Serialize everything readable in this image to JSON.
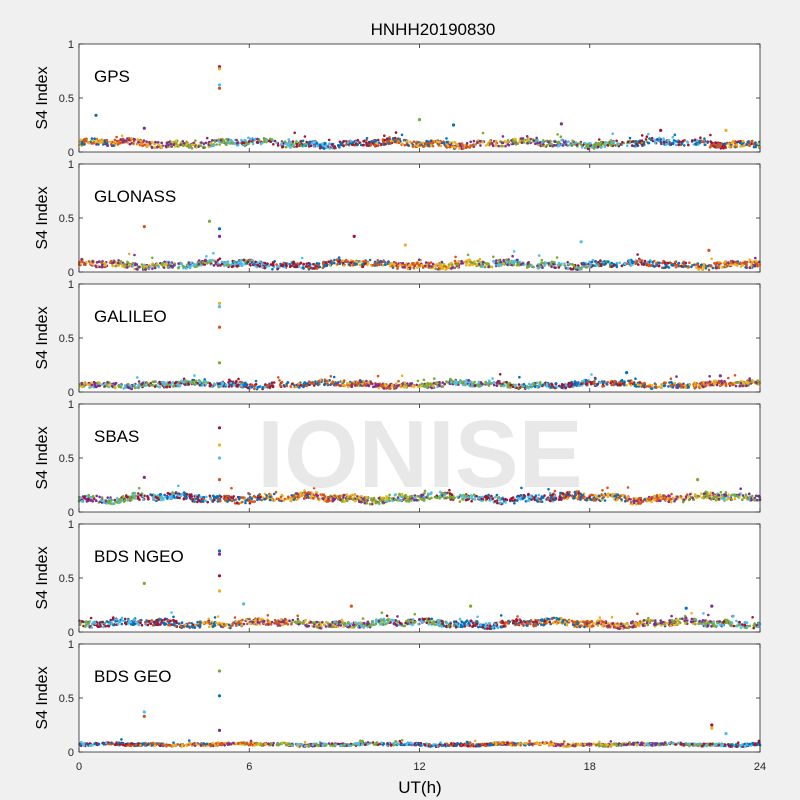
{
  "figure": {
    "title": "HNHH20190830",
    "xlabel": "UT(h)",
    "watermark": "IONISE"
  },
  "colors": {
    "series": [
      "#0072BD",
      "#D95319",
      "#EDB120",
      "#7E2F8E",
      "#77AC30",
      "#4DBEEE",
      "#A2142F"
    ],
    "axes_background": "#ffffff",
    "figure_background": "#f0f0f0",
    "watermark": "#e4e4e4"
  },
  "chart_data": [
    {
      "type": "scatter",
      "label": "GPS",
      "ylabel": "S4 Index",
      "xlim": [
        0,
        24
      ],
      "ylim": [
        0,
        1
      ],
      "xticks": [
        0,
        6,
        12,
        18,
        24
      ],
      "yticks": [
        0,
        0.5,
        1
      ],
      "ytick_labels": [
        "0",
        "0.5",
        "1"
      ],
      "show_xtick_labels": false,
      "baseline": 0.08,
      "noise": 0.035,
      "spikes": [
        [
          0.6,
          0.34
        ],
        [
          2.3,
          0.22
        ],
        [
          4.95,
          0.79
        ],
        [
          4.95,
          0.77
        ],
        [
          4.95,
          0.62
        ],
        [
          4.95,
          0.59
        ],
        [
          12.0,
          0.3
        ],
        [
          13.2,
          0.25
        ],
        [
          17.0,
          0.26
        ],
        [
          20.5,
          0.2
        ],
        [
          22.8,
          0.2
        ]
      ]
    },
    {
      "type": "scatter",
      "label": "GLONASS",
      "ylabel": "S4 Index",
      "xlim": [
        0,
        24
      ],
      "ylim": [
        0,
        1
      ],
      "xticks": [
        0,
        6,
        12,
        18,
        24
      ],
      "yticks": [
        0,
        0.5,
        1
      ],
      "ytick_labels": [
        "0",
        "0.5",
        "1"
      ],
      "show_xtick_labels": false,
      "baseline": 0.07,
      "noise": 0.035,
      "spikes": [
        [
          2.3,
          0.42
        ],
        [
          4.6,
          0.47
        ],
        [
          4.95,
          0.4
        ],
        [
          4.95,
          0.33
        ],
        [
          9.7,
          0.33
        ],
        [
          11.5,
          0.25
        ],
        [
          17.7,
          0.28
        ],
        [
          22.2,
          0.2
        ]
      ]
    },
    {
      "type": "scatter",
      "label": "GALILEO",
      "ylabel": "S4 Index",
      "xlim": [
        0,
        24
      ],
      "ylim": [
        0,
        1
      ],
      "xticks": [
        0,
        6,
        12,
        18,
        24
      ],
      "yticks": [
        0,
        0.5,
        1
      ],
      "ytick_labels": [
        "0",
        "0.5",
        "1"
      ],
      "show_xtick_labels": false,
      "baseline": 0.07,
      "noise": 0.03,
      "spikes": [
        [
          4.95,
          0.82
        ],
        [
          4.95,
          0.79
        ],
        [
          4.95,
          0.6
        ],
        [
          4.95,
          0.27
        ],
        [
          19.3,
          0.18
        ],
        [
          22.6,
          0.15
        ]
      ]
    },
    {
      "type": "scatter",
      "label": "SBAS",
      "ylabel": "S4 Index",
      "xlim": [
        0,
        24
      ],
      "ylim": [
        0,
        1
      ],
      "xticks": [
        0,
        6,
        12,
        18,
        24
      ],
      "yticks": [
        0,
        0.5,
        1
      ],
      "ytick_labels": [
        "0",
        "0.5",
        "1"
      ],
      "show_xtick_labels": false,
      "baseline": 0.13,
      "noise": 0.04,
      "spikes": [
        [
          2.3,
          0.32
        ],
        [
          4.95,
          0.78
        ],
        [
          4.95,
          0.62
        ],
        [
          4.95,
          0.5
        ],
        [
          4.95,
          0.3
        ],
        [
          21.8,
          0.3
        ]
      ]
    },
    {
      "type": "scatter",
      "label": "BDS NGEO",
      "ylabel": "S4 Index",
      "xlim": [
        0,
        24
      ],
      "ylim": [
        0,
        1
      ],
      "xticks": [
        0,
        6,
        12,
        18,
        24
      ],
      "yticks": [
        0,
        0.5,
        1
      ],
      "ytick_labels": [
        "0",
        "0.5",
        "1"
      ],
      "show_xtick_labels": false,
      "baseline": 0.08,
      "noise": 0.035,
      "spikes": [
        [
          2.3,
          0.45
        ],
        [
          4.95,
          0.75
        ],
        [
          4.95,
          0.72
        ],
        [
          4.95,
          0.52
        ],
        [
          4.95,
          0.38
        ],
        [
          5.8,
          0.26
        ],
        [
          9.6,
          0.24
        ],
        [
          13.8,
          0.24
        ],
        [
          21.4,
          0.22
        ],
        [
          22.3,
          0.24
        ]
      ]
    },
    {
      "type": "scatter",
      "label": "BDS GEO",
      "ylabel": "S4 Index",
      "xlim": [
        0,
        24
      ],
      "ylim": [
        0,
        1
      ],
      "xticks": [
        0,
        6,
        12,
        18,
        24
      ],
      "yticks": [
        0,
        0.5,
        1
      ],
      "ytick_labels": [
        "0",
        "0.5",
        "1"
      ],
      "show_xtick_labels": true,
      "xtick_labels": [
        "0",
        "6",
        "12",
        "18",
        "24"
      ],
      "baseline": 0.07,
      "noise": 0.015,
      "spikes": [
        [
          2.3,
          0.37
        ],
        [
          2.3,
          0.33
        ],
        [
          4.95,
          0.75
        ],
        [
          4.95,
          0.52
        ],
        [
          4.95,
          0.2
        ],
        [
          22.3,
          0.25
        ],
        [
          22.3,
          0.22
        ],
        [
          22.8,
          0.17
        ]
      ]
    }
  ]
}
